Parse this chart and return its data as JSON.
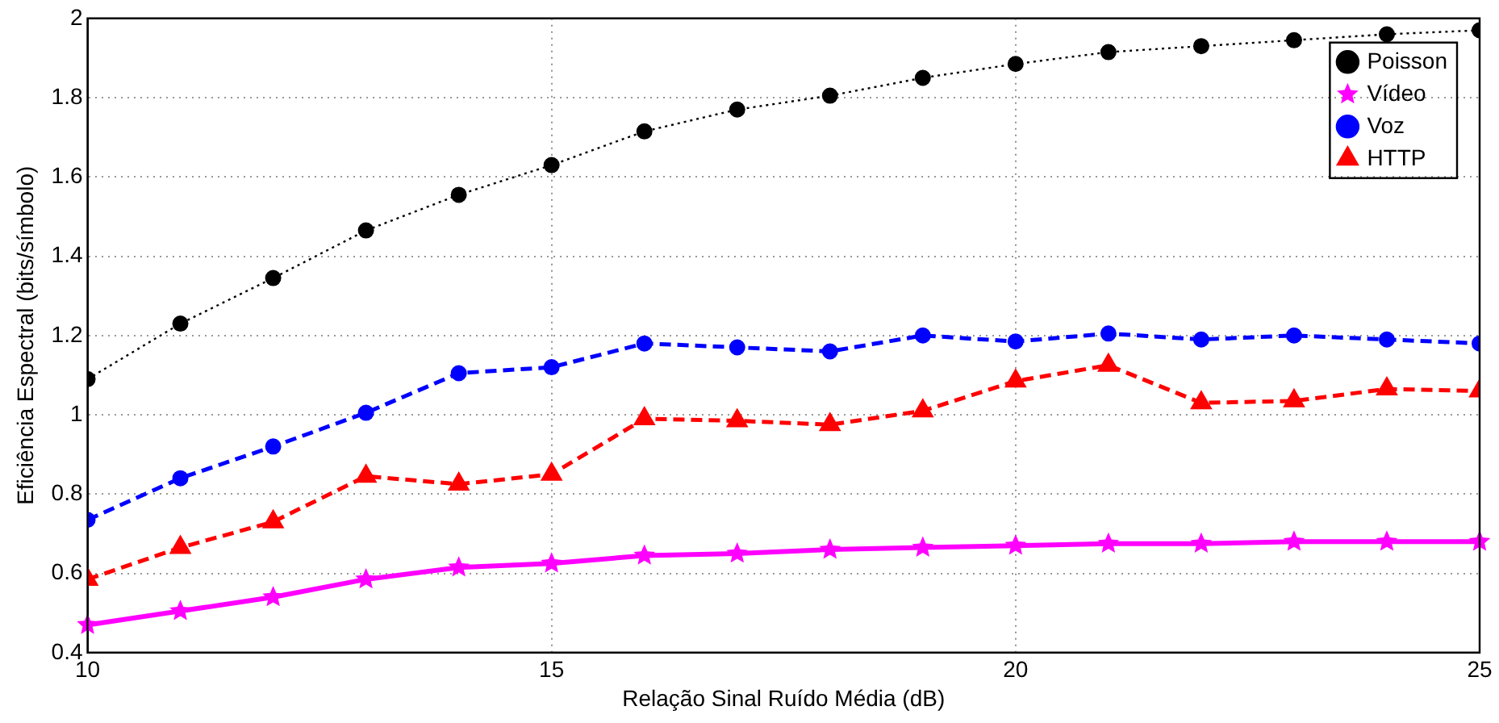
{
  "chart_data": {
    "type": "line",
    "xlabel": "Relação Sinal Ruído Média (dB)",
    "ylabel": "Eficiência Espectral (bits/símbolo)",
    "x": [
      10,
      11,
      12,
      13,
      14,
      15,
      16,
      17,
      18,
      19,
      20,
      21,
      22,
      23,
      24,
      25
    ],
    "xlim": [
      10,
      25
    ],
    "xticks": [
      10,
      15,
      20,
      25
    ],
    "ylim": [
      0.4,
      2
    ],
    "yticks": [
      0.4,
      0.6,
      0.8,
      1,
      1.2,
      1.4,
      1.6,
      1.8,
      2
    ],
    "grid": true,
    "legend": "top right",
    "series": [
      {
        "name": "Poisson",
        "color": "#000000",
        "marker": "circle",
        "line_style": "dotted",
        "values": [
          1.09,
          1.23,
          1.345,
          1.465,
          1.555,
          1.63,
          1.715,
          1.77,
          1.805,
          1.85,
          1.885,
          1.915,
          1.93,
          1.945,
          1.96,
          1.97
        ]
      },
      {
        "name": "Vídeo",
        "color": "#ff00ff",
        "marker": "star",
        "line_style": "solid",
        "values": [
          0.47,
          0.505,
          0.54,
          0.585,
          0.615,
          0.625,
          0.645,
          0.65,
          0.66,
          0.665,
          0.67,
          0.675,
          0.675,
          0.68,
          0.68,
          0.68
        ]
      },
      {
        "name": "Voz",
        "color": "#0000ff",
        "marker": "circle",
        "line_style": "dashed",
        "values": [
          0.735,
          0.84,
          0.92,
          1.005,
          1.105,
          1.12,
          1.18,
          1.17,
          1.16,
          1.2,
          1.185,
          1.205,
          1.19,
          1.2,
          1.19,
          1.18
        ]
      },
      {
        "name": "HTTP",
        "color": "#ff0000",
        "marker": "triangle",
        "line_style": "dashed",
        "values": [
          0.585,
          0.665,
          0.73,
          0.845,
          0.825,
          0.85,
          0.99,
          0.985,
          0.975,
          1.01,
          1.085,
          1.125,
          1.03,
          1.035,
          1.065,
          1.06
        ]
      }
    ]
  }
}
